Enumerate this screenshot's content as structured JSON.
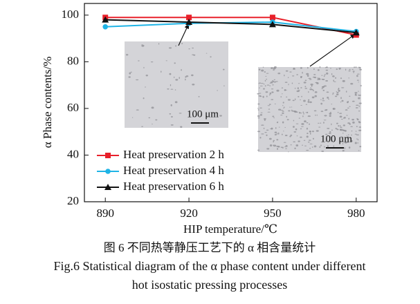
{
  "chart_data": {
    "type": "line",
    "x_label": "HIP temperature/℃",
    "y_label": "α Phase contents/%",
    "x": [
      890,
      920,
      950,
      980
    ],
    "series": [
      {
        "name": "Heat preservation 2 h",
        "color": "#e8202a",
        "marker": "square",
        "values": [
          99,
          99,
          99,
          91.5
        ]
      },
      {
        "name": "Heat preservation 4 h",
        "color": "#1fb4e6",
        "marker": "circle",
        "values": [
          95,
          96.5,
          97,
          93
        ]
      },
      {
        "name": "Heat preservation 6 h",
        "color": "#111111",
        "marker": "triangle",
        "values": [
          98,
          97,
          96,
          92.5
        ]
      }
    ],
    "xlim": [
      882.5,
      987.5
    ],
    "ylim": [
      20,
      105
    ],
    "xticks": [
      890,
      920,
      950,
      980
    ],
    "yticks": [
      20,
      40,
      60,
      80,
      100
    ],
    "legend": "lower left",
    "annotations": [
      "100 μm",
      "100 μm"
    ]
  },
  "caption": {
    "chinese": "图 6 不同热等静压工艺下的 α 相含量统计",
    "english_line1": "Fig.6  Statistical diagram of the α phase content under different",
    "english_line2": "hot isostatic pressing processes"
  }
}
